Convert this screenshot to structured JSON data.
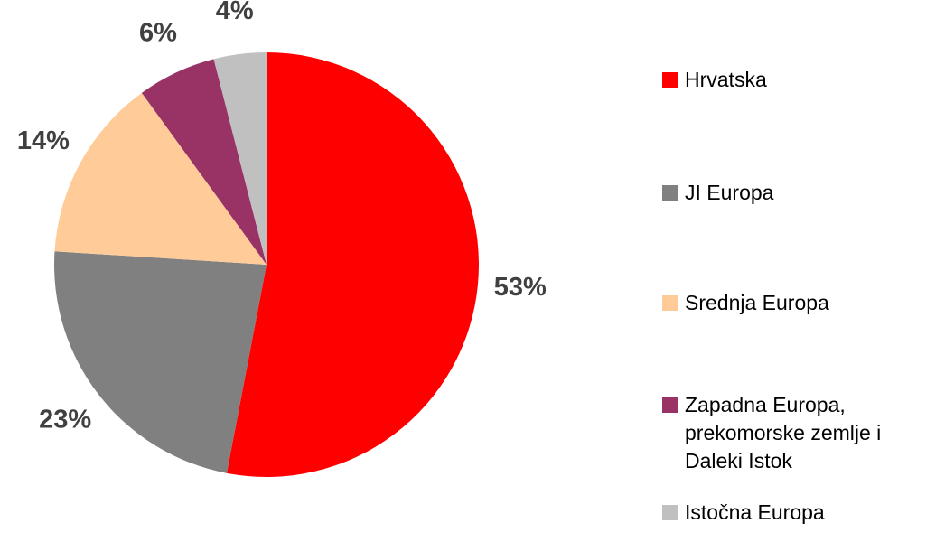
{
  "chart_data": {
    "type": "pie",
    "categories": [
      "Hrvatska",
      "JI Europa",
      "Srednja Europa",
      "Zapadna Europa, prekomorske zemlje i Daleki Istok",
      "Istočna Europa"
    ],
    "values": [
      53,
      23,
      14,
      6,
      4
    ],
    "value_labels": [
      "53%",
      "23%",
      "14%",
      "6%",
      "4%"
    ],
    "colors": [
      "#ff0000",
      "#808080",
      "#ffcc99",
      "#993366",
      "#c0c0c0"
    ],
    "legend": "right"
  }
}
